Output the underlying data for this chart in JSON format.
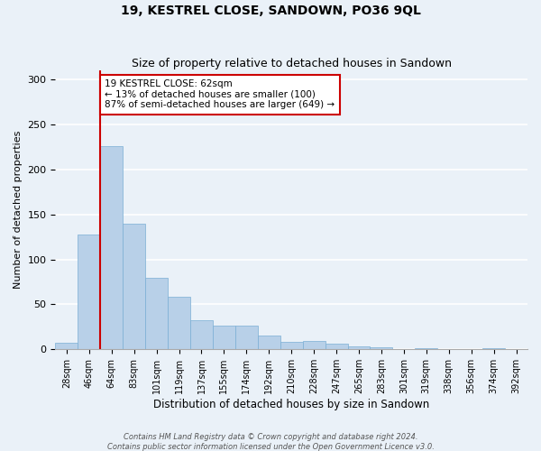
{
  "title": "19, KESTREL CLOSE, SANDOWN, PO36 9QL",
  "subtitle": "Size of property relative to detached houses in Sandown",
  "xlabel": "Distribution of detached houses by size in Sandown",
  "ylabel": "Number of detached properties",
  "bar_color": "#b8d0e8",
  "bar_edge_color": "#7aafd4",
  "background_color": "#eaf1f8",
  "grid_color": "#ffffff",
  "vline_color": "#cc0000",
  "annotation_text": "19 KESTREL CLOSE: 62sqm\n← 13% of detached houses are smaller (100)\n87% of semi-detached houses are larger (649) →",
  "annotation_box_color": "#ffffff",
  "annotation_box_edge_color": "#cc0000",
  "bins": [
    "28sqm",
    "46sqm",
    "64sqm",
    "83sqm",
    "101sqm",
    "119sqm",
    "137sqm",
    "155sqm",
    "174sqm",
    "192sqm",
    "210sqm",
    "228sqm",
    "247sqm",
    "265sqm",
    "283sqm",
    "301sqm",
    "319sqm",
    "338sqm",
    "356sqm",
    "374sqm",
    "392sqm"
  ],
  "values": [
    7,
    128,
    226,
    140,
    80,
    59,
    32,
    26,
    26,
    15,
    8,
    9,
    6,
    3,
    2,
    0,
    1,
    0,
    0,
    1,
    0
  ],
  "ylim": [
    0,
    310
  ],
  "yticks": [
    0,
    50,
    100,
    150,
    200,
    250,
    300
  ],
  "footer_line1": "Contains HM Land Registry data © Crown copyright and database right 2024.",
  "footer_line2": "Contains public sector information licensed under the Open Government Licence v3.0."
}
